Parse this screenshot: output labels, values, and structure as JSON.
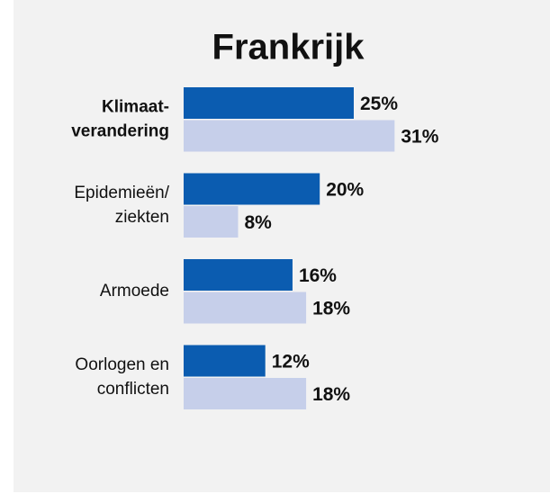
{
  "chart_data": {
    "type": "hbar",
    "title": "Frankrijk",
    "categories": [
      [
        "Klimaat-",
        "verandering"
      ],
      [
        "Epidemieën/",
        "ziekten"
      ],
      [
        "Armoede"
      ],
      [
        "Oorlogen en",
        "conflicten"
      ]
    ],
    "highlight_category": 0,
    "series": [
      {
        "color": "#0b5cb0",
        "values": [
          25,
          20,
          16,
          12
        ],
        "value_labels": [
          "25%",
          "20%",
          "16%",
          "12%"
        ]
      },
      {
        "color": "#c6cfea",
        "values": [
          31,
          8,
          18,
          18
        ],
        "value_labels": [
          "31%",
          "8%",
          "18%",
          "18%"
        ]
      }
    ]
  }
}
